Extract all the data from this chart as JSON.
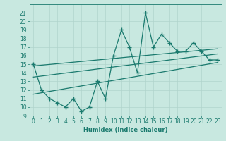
{
  "x_data": [
    0,
    1,
    2,
    3,
    4,
    5,
    6,
    7,
    8,
    9,
    10,
    11,
    12,
    13,
    14,
    15,
    16,
    17,
    18,
    19,
    20,
    21,
    22,
    23
  ],
  "y_data": [
    15,
    12,
    11,
    10.5,
    10,
    11,
    9.5,
    10,
    13,
    11,
    16,
    19,
    17,
    14,
    21,
    17,
    18.5,
    17.5,
    16.5,
    16.5,
    17.5,
    16.5,
    15.5,
    15.5
  ],
  "trend1_x": [
    0,
    23
  ],
  "trend1_y": [
    14.8,
    16.8
  ],
  "trend2_x": [
    0,
    23
  ],
  "trend2_y": [
    13.5,
    16.2
  ],
  "trend3_x": [
    0,
    23
  ],
  "trend3_y": [
    11.5,
    15.2
  ],
  "line_color": "#1a7a6e",
  "bg_color": "#c8e8e0",
  "grid_color": "#b0d4cc",
  "xlabel": "Humidex (Indice chaleur)",
  "ylim": [
    9,
    22
  ],
  "xlim": [
    -0.5,
    23.5
  ],
  "yticks": [
    9,
    10,
    11,
    12,
    13,
    14,
    15,
    16,
    17,
    18,
    19,
    20,
    21
  ],
  "xticks": [
    0,
    1,
    2,
    3,
    4,
    5,
    6,
    7,
    8,
    9,
    10,
    11,
    12,
    13,
    14,
    15,
    16,
    17,
    18,
    19,
    20,
    21,
    22,
    23
  ]
}
